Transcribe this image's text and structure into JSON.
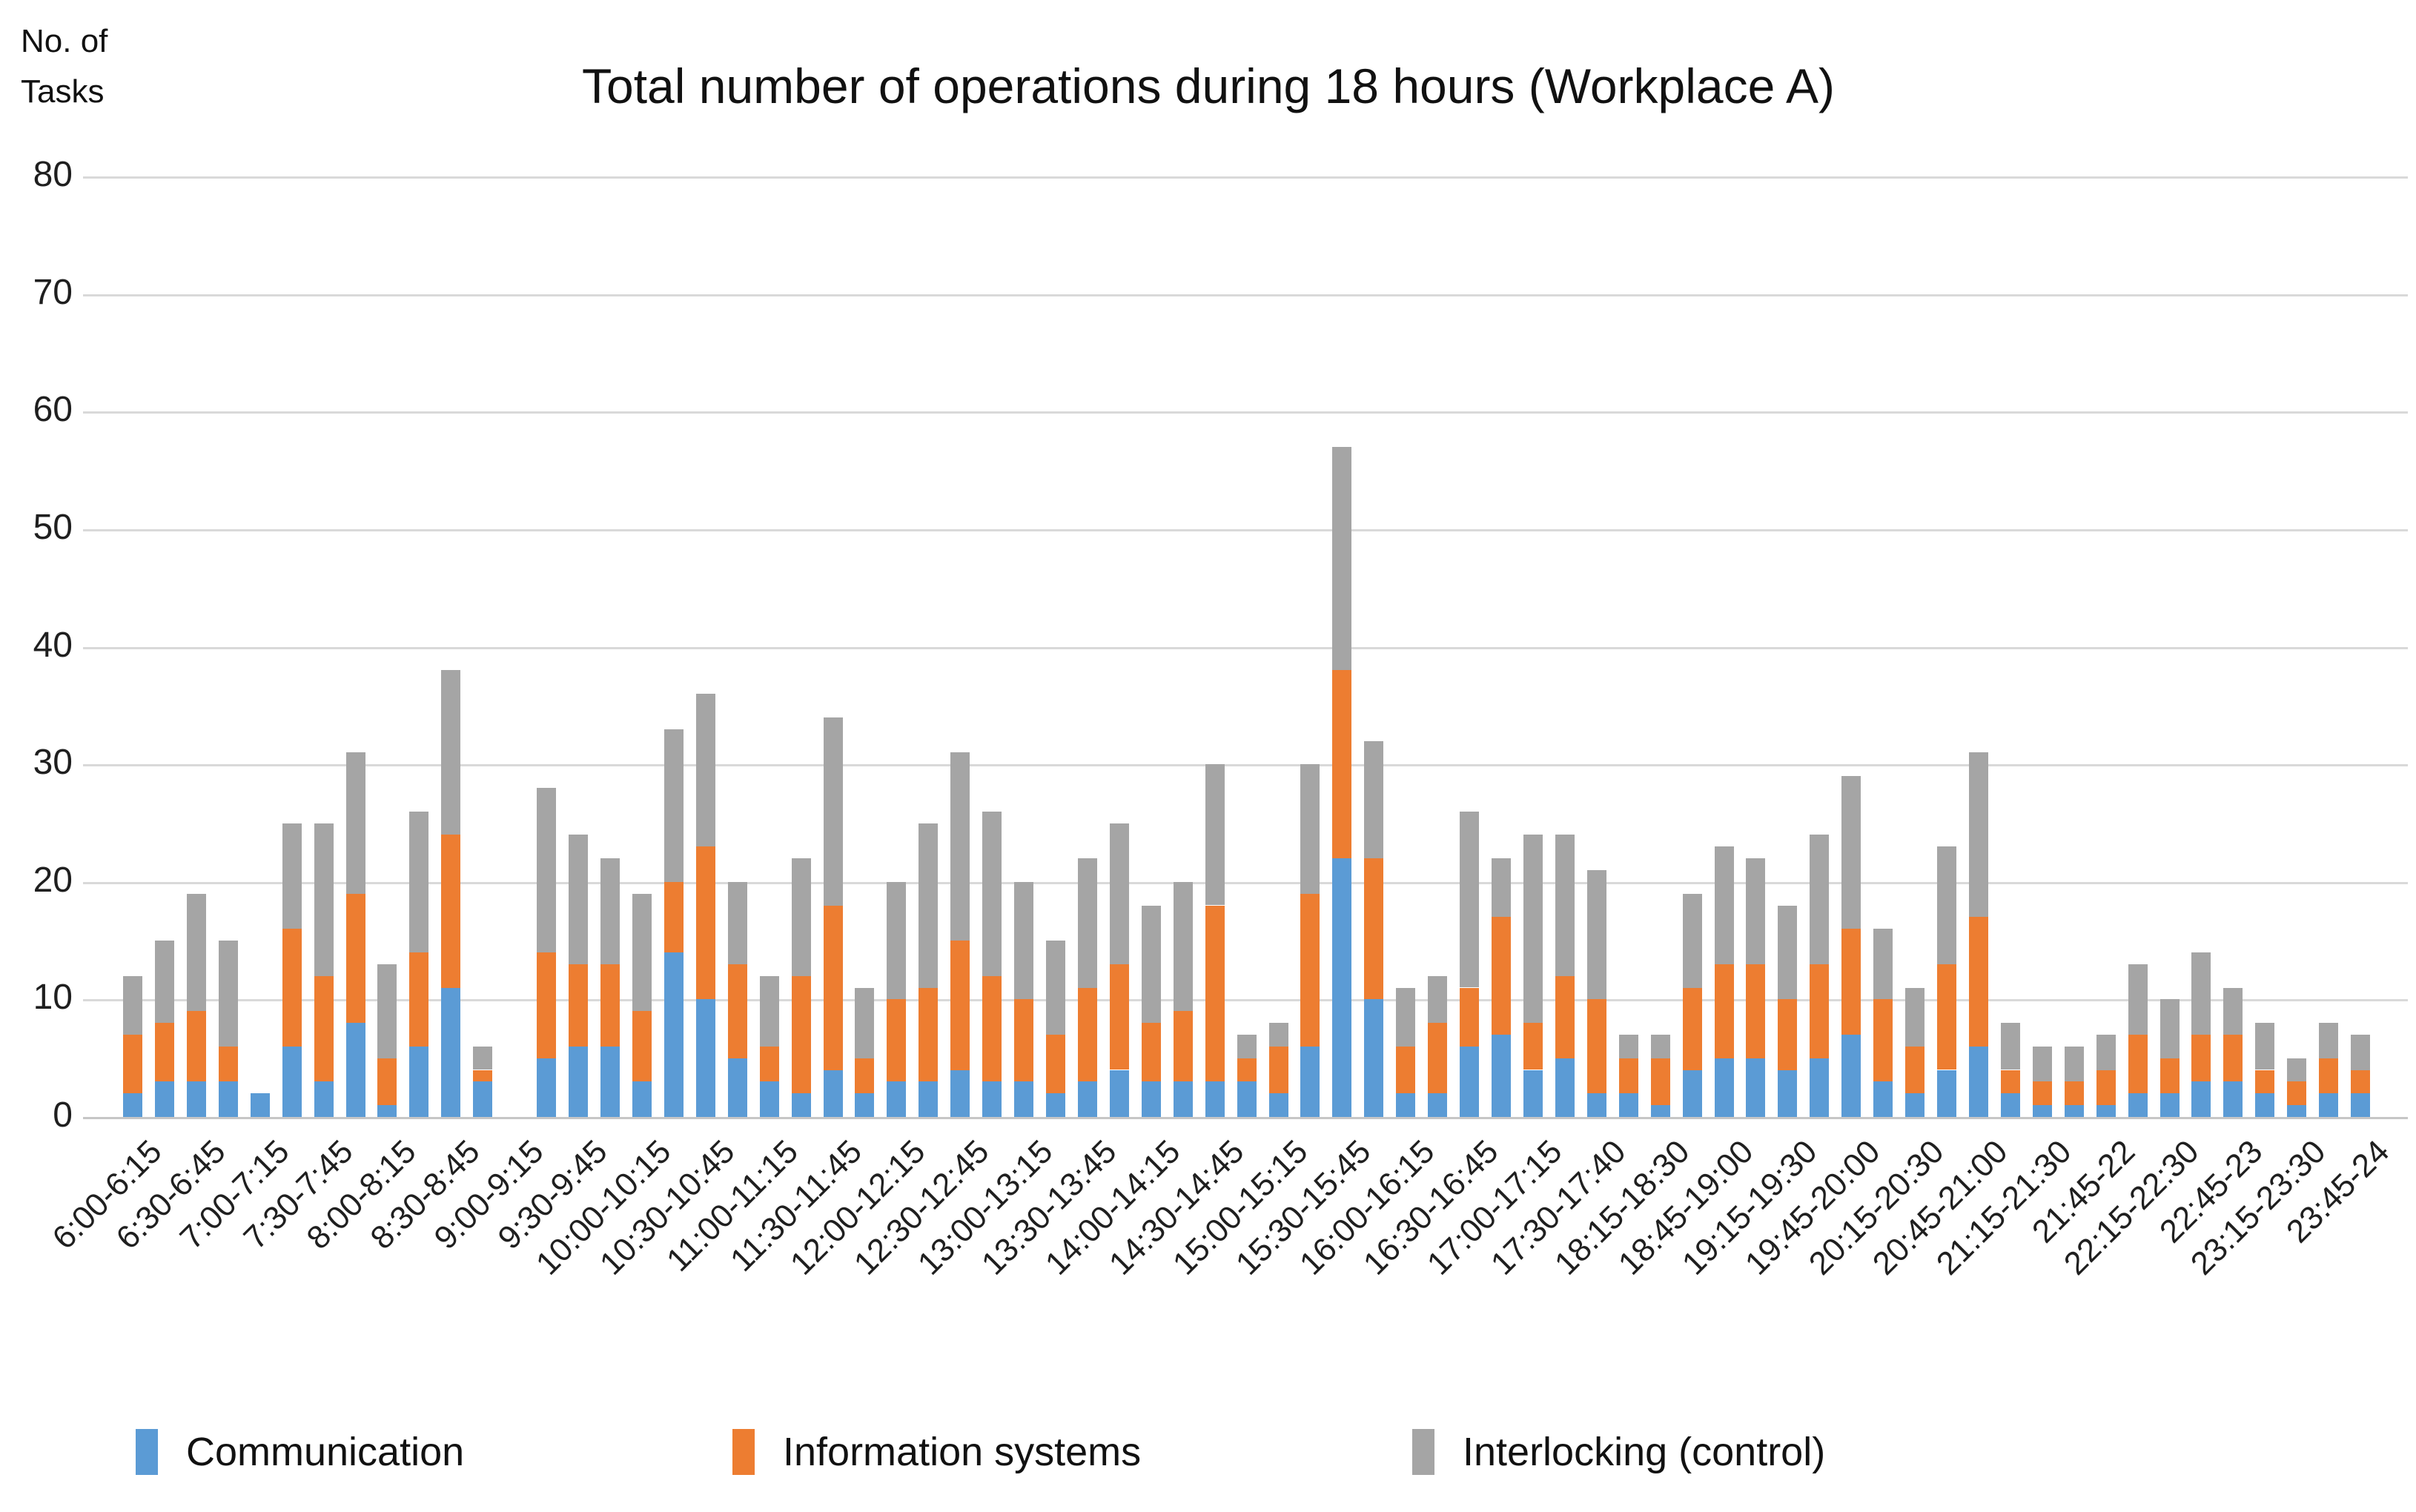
{
  "title": "Total number of operations during 18 hours (Workplace A)",
  "y_axis_unit": {
    "line1": "No. of",
    "line2": "Tasks"
  },
  "colors": {
    "communication": "#5B9BD5",
    "information_systems": "#ED7D31",
    "interlocking": "#A5A5A5",
    "gridline": "#d9d9d9",
    "text": "#1a1a1a"
  },
  "legend": {
    "items": [
      {
        "label": "Communication",
        "color": "#5B9BD5"
      },
      {
        "label": "Information systems",
        "color": "#ED7D31"
      },
      {
        "label": "Interlocking (control)",
        "color": "#A5A5A5"
      }
    ]
  },
  "chart_data": {
    "type": "bar",
    "stacked": true,
    "title": "Total number of operations during 18 hours (Workplace A)",
    "xlabel": "",
    "ylabel": "No. of Tasks",
    "ylim": [
      0,
      80
    ],
    "yticks": [
      0,
      10,
      20,
      30,
      40,
      50,
      60,
      70,
      80
    ],
    "grid": true,
    "legend_position": "bottom",
    "num_slots": 71,
    "bars_per_label": 2,
    "note_empty_slot": "slot 13 (9:00-9:15) has zero tasks",
    "tick_labels": [
      "6:00-6:15",
      "6:30-6:45",
      "7:00-7:15",
      "7:30-7:45",
      "8:00-8:15",
      "8:30-8:45",
      "9:00-9:15",
      "9:30-9:45",
      "10:00-10:15",
      "10:30-10:45",
      "11:00-11:15",
      "11:30-11:45",
      "12:00-12:15",
      "12:30-12:45",
      "13:00-13:15",
      "13:30-13:45",
      "14:00-14:15",
      "14:30-14:45",
      "15:00-15:15",
      "15:30-15:45",
      "16:00-16:15",
      "16:30-16:45",
      "17:00-17:15",
      "17:30-17:40",
      "18:15-18:30",
      "18:45-19:00",
      "19:15-19:30",
      "19:45-20:00",
      "20:15-20:30",
      "20:45-21:00",
      "21:15-21:30",
      "21:45-22",
      "22:15-22:30",
      "22:45-23",
      "23:15-23:30",
      "23:45-24"
    ],
    "series": [
      {
        "name": "Communication",
        "color": "#5B9BD5",
        "values": [
          2,
          3,
          3,
          3,
          2,
          6,
          3,
          8,
          1,
          6,
          11,
          3,
          0,
          5,
          6,
          6,
          3,
          14,
          10,
          5,
          3,
          2,
          4,
          2,
          3,
          3,
          4,
          3,
          3,
          2,
          3,
          4,
          3,
          3,
          3,
          3,
          2,
          6,
          22,
          10,
          2,
          2,
          6,
          7,
          4,
          5,
          2,
          2,
          1,
          4,
          5,
          5,
          4,
          5,
          7,
          3,
          2,
          4,
          6,
          2,
          1,
          1,
          1,
          2,
          2,
          3,
          3,
          2,
          1,
          2,
          2
        ]
      },
      {
        "name": "Information systems",
        "color": "#ED7D31",
        "values": [
          5,
          5,
          6,
          3,
          0,
          10,
          9,
          11,
          4,
          8,
          13,
          1,
          0,
          9,
          7,
          7,
          6,
          6,
          13,
          8,
          3,
          10,
          14,
          3,
          7,
          8,
          11,
          9,
          7,
          5,
          8,
          9,
          5,
          6,
          15,
          2,
          4,
          13,
          16,
          12,
          4,
          6,
          5,
          10,
          4,
          7,
          8,
          3,
          4,
          7,
          8,
          8,
          6,
          8,
          9,
          7,
          4,
          9,
          11,
          2,
          2,
          2,
          3,
          5,
          3,
          4,
          4,
          2,
          2,
          3,
          2
        ]
      },
      {
        "name": "Interlocking (control)",
        "color": "#A5A5A5",
        "values": [
          5,
          7,
          10,
          9,
          0,
          9,
          13,
          12,
          8,
          12,
          14,
          2,
          0,
          14,
          11,
          9,
          10,
          13,
          13,
          7,
          6,
          10,
          16,
          6,
          10,
          14,
          16,
          14,
          10,
          8,
          11,
          12,
          10,
          11,
          12,
          2,
          2,
          11,
          19,
          10,
          5,
          4,
          15,
          5,
          16,
          12,
          11,
          2,
          2,
          8,
          10,
          9,
          8,
          11,
          13,
          6,
          5,
          10,
          14,
          4,
          3,
          3,
          3,
          6,
          5,
          7,
          4,
          4,
          2,
          3,
          3
        ]
      }
    ]
  }
}
